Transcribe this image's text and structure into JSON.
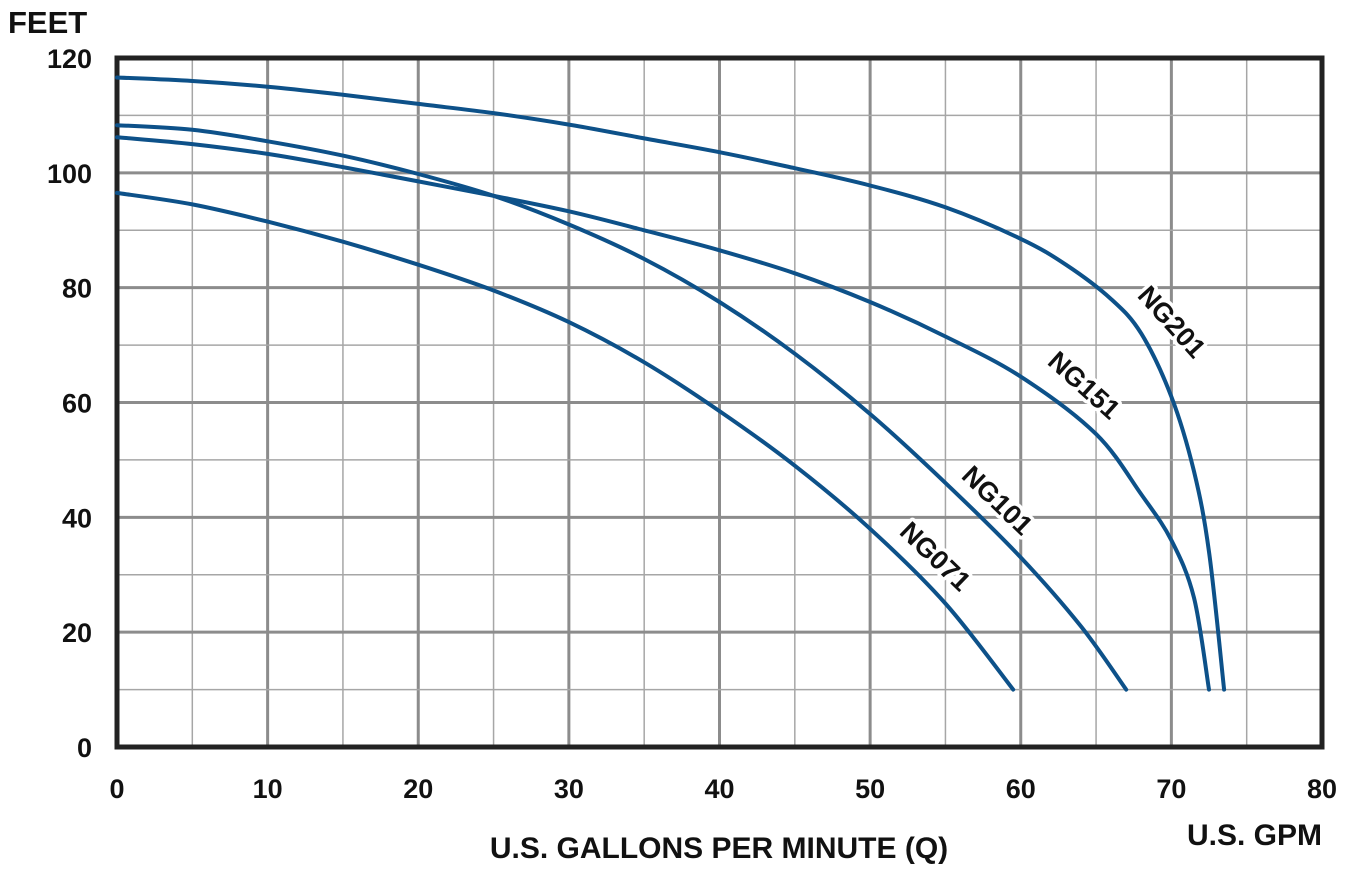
{
  "chart_data": {
    "type": "line",
    "ylabel": "FEET",
    "xlabel": "U.S. GALLONS PER MINUTE (Q)",
    "xunit_label": "U.S. GPM",
    "xlim": [
      0,
      80
    ],
    "ylim": [
      0,
      120
    ],
    "x_ticks": [
      "0",
      "10",
      "20",
      "30",
      "40",
      "50",
      "60",
      "70",
      "80"
    ],
    "y_ticks": [
      "0",
      "20",
      "40",
      "60",
      "80",
      "100",
      "120"
    ],
    "grid": true,
    "series": [
      {
        "name": "NG071",
        "color": "#0d5189",
        "points": [
          [
            0,
            96.5
          ],
          [
            5,
            94.5
          ],
          [
            10,
            91.5
          ],
          [
            15,
            88
          ],
          [
            20,
            84
          ],
          [
            25,
            79.5
          ],
          [
            30,
            74
          ],
          [
            35,
            67
          ],
          [
            40,
            58.5
          ],
          [
            45,
            49
          ],
          [
            50,
            38
          ],
          [
            55,
            25
          ],
          [
            59.5,
            10
          ]
        ]
      },
      {
        "name": "NG101",
        "color": "#0d5189",
        "points": [
          [
            0,
            108.3
          ],
          [
            5,
            107.5
          ],
          [
            10,
            105.5
          ],
          [
            15,
            103
          ],
          [
            20,
            99.8
          ],
          [
            25,
            96
          ],
          [
            30,
            91
          ],
          [
            35,
            85
          ],
          [
            40,
            77.5
          ],
          [
            45,
            68.5
          ],
          [
            50,
            58
          ],
          [
            55,
            46
          ],
          [
            60,
            33
          ],
          [
            64,
            21
          ],
          [
            67,
            10
          ]
        ]
      },
      {
        "name": "NG151",
        "color": "#0d5189",
        "points": [
          [
            0,
            106.2
          ],
          [
            5,
            105
          ],
          [
            10,
            103.3
          ],
          [
            15,
            101
          ],
          [
            20,
            98.5
          ],
          [
            25,
            96
          ],
          [
            30,
            93.3
          ],
          [
            35,
            90
          ],
          [
            40,
            86.5
          ],
          [
            45,
            82.5
          ],
          [
            50,
            77.5
          ],
          [
            55,
            71.5
          ],
          [
            60,
            64.5
          ],
          [
            65,
            54.5
          ],
          [
            68,
            44
          ],
          [
            70,
            36
          ],
          [
            71.5,
            26
          ],
          [
            72.5,
            10
          ]
        ]
      },
      {
        "name": "NG201",
        "color": "#0d5189",
        "points": [
          [
            0,
            116.6
          ],
          [
            5,
            116
          ],
          [
            10,
            115
          ],
          [
            15,
            113.6
          ],
          [
            20,
            112
          ],
          [
            25,
            110.4
          ],
          [
            30,
            108.4
          ],
          [
            35,
            106
          ],
          [
            40,
            103.6
          ],
          [
            45,
            100.8
          ],
          [
            50,
            97.8
          ],
          [
            55,
            94
          ],
          [
            60,
            88.5
          ],
          [
            63,
            84
          ],
          [
            66,
            78
          ],
          [
            68,
            72
          ],
          [
            70,
            61
          ],
          [
            71.5,
            48
          ],
          [
            72.5,
            34
          ],
          [
            73.5,
            10
          ]
        ]
      }
    ]
  }
}
